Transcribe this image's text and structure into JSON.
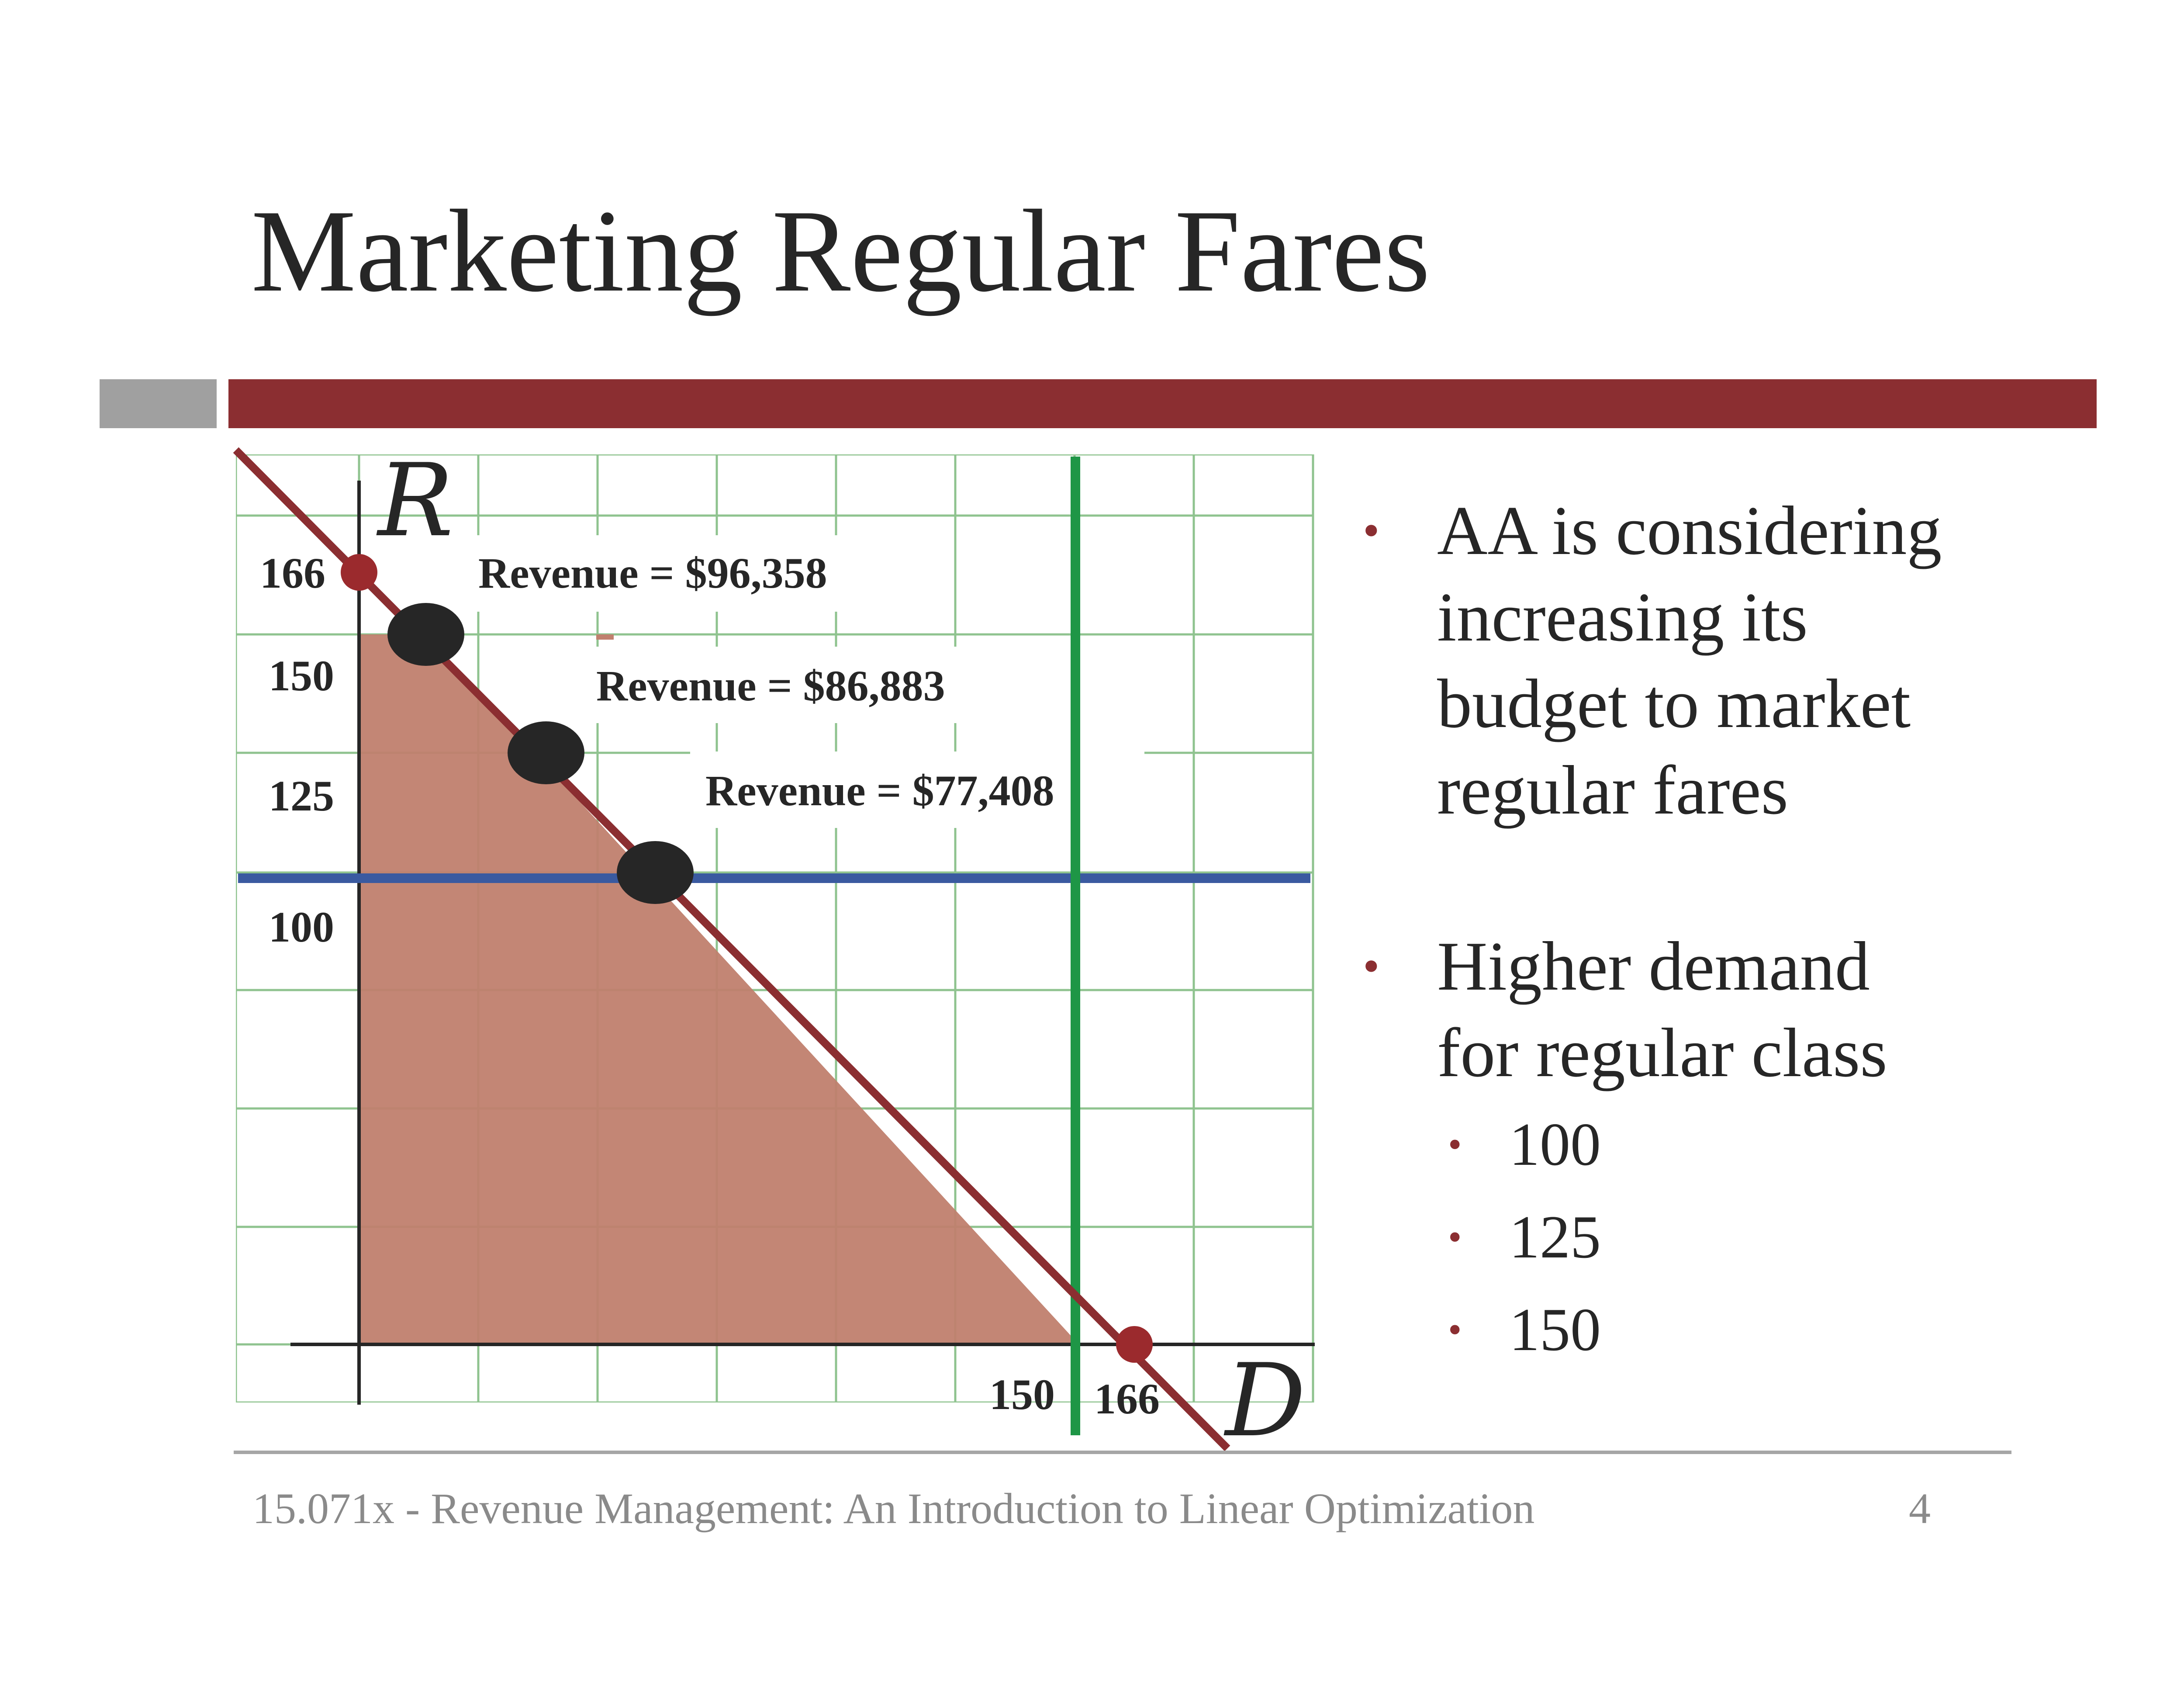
{
  "slide": {
    "title": "Marketing Regular Fares",
    "footer": "15.071x - Revenue Management: An Introduction to Linear Optimization",
    "page_number": "4"
  },
  "bullets": [
    {
      "text": "AA is considering increasing its budget to market regular fares",
      "lines": [
        "AA is considering",
        "increasing its",
        "budget to market",
        "regular fares"
      ],
      "sub": []
    },
    {
      "text": "Higher demand for regular class",
      "lines": [
        "Higher demand",
        "for regular class"
      ],
      "sub": [
        "100",
        "125",
        "150"
      ]
    }
  ],
  "diagram": {
    "axis_labels": {
      "y": "R",
      "x": "D"
    },
    "y_ticks": [
      "166",
      "150",
      "125",
      "100"
    ],
    "x_ticks": [
      "150",
      "166"
    ],
    "revenue_labels": [
      "Revenue = $96,358",
      "Revenue = $86,883",
      "Revenue = $77,408"
    ],
    "colors": {
      "grid": "#6ab06a",
      "constraint_line": "#8b2e31",
      "feasible_region": "#c0806e",
      "horizontal_constraint": "#3a5aa0",
      "vertical_constraint": "#1e9646",
      "optimal_points": "#262626",
      "intercept_points": "#9b2a2d",
      "axes": "#262626"
    },
    "data": {
      "constraint_line": "R + D = 166",
      "vertical_constraint": {
        "D": 150
      },
      "horizontal_constraint": {
        "R": 110
      },
      "intercepts": [
        {
          "D": 0,
          "R": 166
        },
        {
          "D": 166,
          "R": 0
        }
      ],
      "corner_points": [
        {
          "D": 16,
          "R": 150,
          "revenue": "$96,358"
        },
        {
          "D": 41,
          "R": 125,
          "revenue": "$86,883"
        },
        {
          "D": 66,
          "R": 100,
          "revenue": "$77,408"
        }
      ]
    }
  }
}
